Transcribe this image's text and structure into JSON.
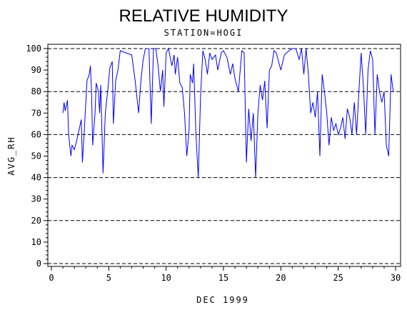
{
  "chart_data": {
    "type": "line",
    "title": "RELATIVE HUMIDITY",
    "subtitle": "STATION=HOGI",
    "x_label": "DEC 1999",
    "y_label": "AVG_RH",
    "x": [
      1.0,
      1.1,
      1.2,
      1.4,
      1.5,
      1.7,
      1.8,
      2.0,
      2.2,
      2.4,
      2.6,
      2.7,
      2.9,
      3.1,
      3.3,
      3.4,
      3.5,
      3.6,
      3.8,
      3.9,
      4.1,
      4.2,
      4.3,
      4.5,
      4.7,
      4.9,
      5.1,
      5.3,
      5.4,
      5.6,
      5.8,
      6.0,
      6.5,
      7.0,
      7.3,
      7.6,
      7.8,
      8.0,
      8.2,
      8.5,
      8.7,
      8.9,
      9.1,
      9.3,
      9.5,
      9.7,
      9.8,
      10.0,
      10.2,
      10.5,
      10.7,
      10.8,
      11.0,
      11.2,
      11.4,
      11.6,
      11.8,
      12.0,
      12.1,
      12.3,
      12.4,
      12.6,
      12.8,
      13.0,
      13.2,
      13.4,
      13.6,
      13.8,
      14.0,
      14.3,
      14.5,
      14.8,
      15.0,
      15.3,
      15.6,
      15.8,
      16.0,
      16.3,
      16.6,
      16.8,
      17.0,
      17.2,
      17.4,
      17.6,
      17.8,
      18.0,
      18.2,
      18.4,
      18.6,
      18.8,
      19.0,
      19.2,
      19.4,
      19.6,
      20.0,
      20.3,
      20.7,
      21.0,
      21.3,
      21.6,
      21.8,
      22.0,
      22.2,
      22.4,
      22.6,
      22.8,
      23.0,
      23.2,
      23.4,
      23.6,
      23.8,
      24.0,
      24.2,
      24.4,
      24.6,
      24.8,
      25.0,
      25.2,
      25.4,
      25.6,
      25.8,
      26.0,
      26.2,
      26.4,
      26.6,
      26.8,
      27.0,
      27.2,
      27.4,
      27.6,
      27.8,
      28.0,
      28.2,
      28.4,
      28.6,
      28.8,
      29.0,
      29.2,
      29.4,
      29.6,
      29.8
    ],
    "series": [
      {
        "name": "AVG_RH",
        "color": "#0000ff",
        "values": [
          70,
          75,
          71,
          76,
          60,
          50,
          55,
          53,
          57,
          62,
          67,
          47,
          65,
          85,
          88,
          92,
          80,
          55,
          70,
          84,
          80,
          70,
          83,
          42,
          70,
          80,
          91,
          94,
          65,
          85,
          90,
          99,
          98,
          97,
          85,
          70,
          85,
          95,
          100,
          100,
          65,
          100,
          100,
          92,
          80,
          90,
          73,
          98,
          100,
          92,
          97,
          88,
          96,
          84,
          82,
          70,
          50,
          62,
          88,
          84,
          93,
          60,
          40,
          78,
          99,
          95,
          88,
          98,
          95,
          97,
          90,
          98,
          99,
          96,
          88,
          93,
          86,
          80,
          99,
          98,
          47,
          72,
          57,
          70,
          40,
          70,
          83,
          76,
          85,
          63,
          90,
          92,
          99,
          98,
          90,
          97,
          99,
          100,
          100,
          95,
          100,
          88,
          100,
          88,
          70,
          75,
          68,
          80,
          50,
          88,
          80,
          70,
          55,
          68,
          62,
          65,
          60,
          63,
          68,
          58,
          72,
          68,
          60,
          75,
          60,
          80,
          98,
          82,
          60,
          90,
          99,
          95,
          60,
          88,
          80,
          75,
          80,
          55,
          50,
          88,
          80
        ]
      }
    ],
    "xlim": [
      0,
      30
    ],
    "xticks": [
      0,
      5,
      10,
      15,
      20,
      25,
      30
    ],
    "ylim": [
      0,
      100
    ],
    "yticks": [
      0,
      10,
      20,
      30,
      40,
      50,
      60,
      70,
      80,
      90,
      100
    ],
    "grid_lines": [
      0,
      20,
      40,
      60,
      80,
      100
    ]
  }
}
